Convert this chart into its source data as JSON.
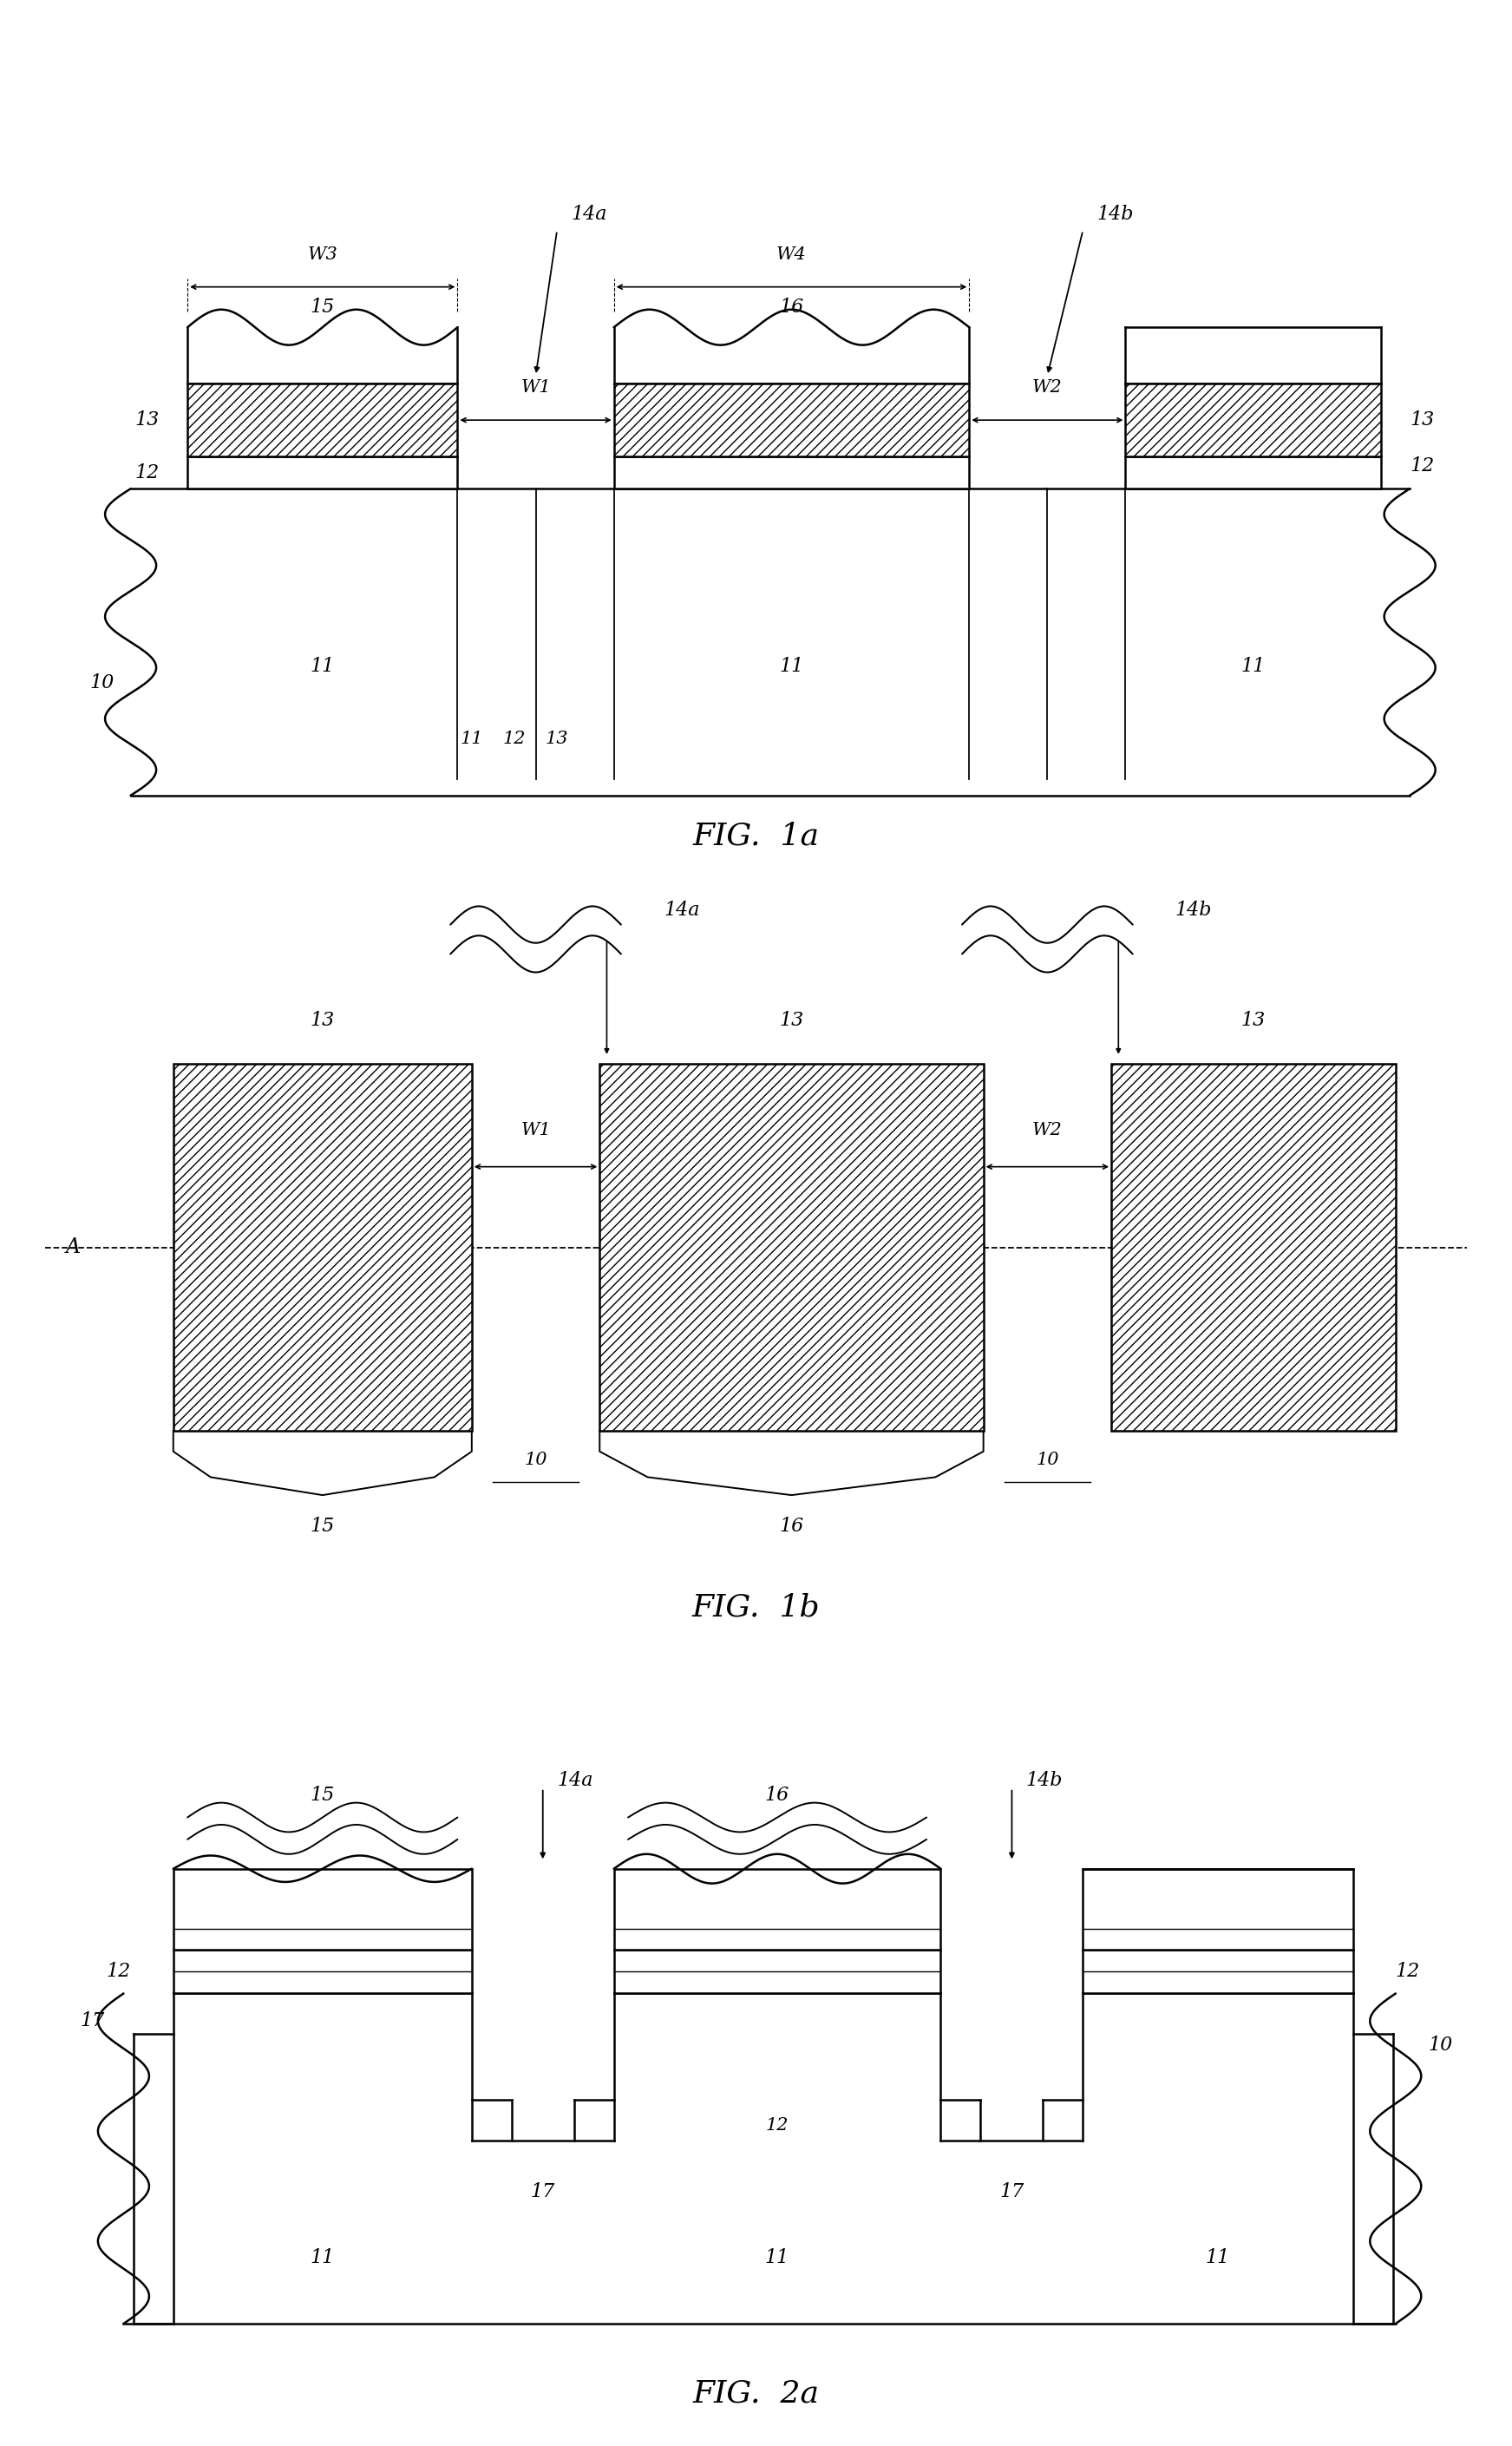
{
  "fig_title_1a": "FIG.  1a",
  "fig_title_1b": "FIG.  1b",
  "fig_title_2a": "FIG.  2a",
  "bg_color": "#ffffff",
  "lw": 1.8,
  "lw_thin": 1.0,
  "font_size_label": 16,
  "font_size_fig": 26
}
